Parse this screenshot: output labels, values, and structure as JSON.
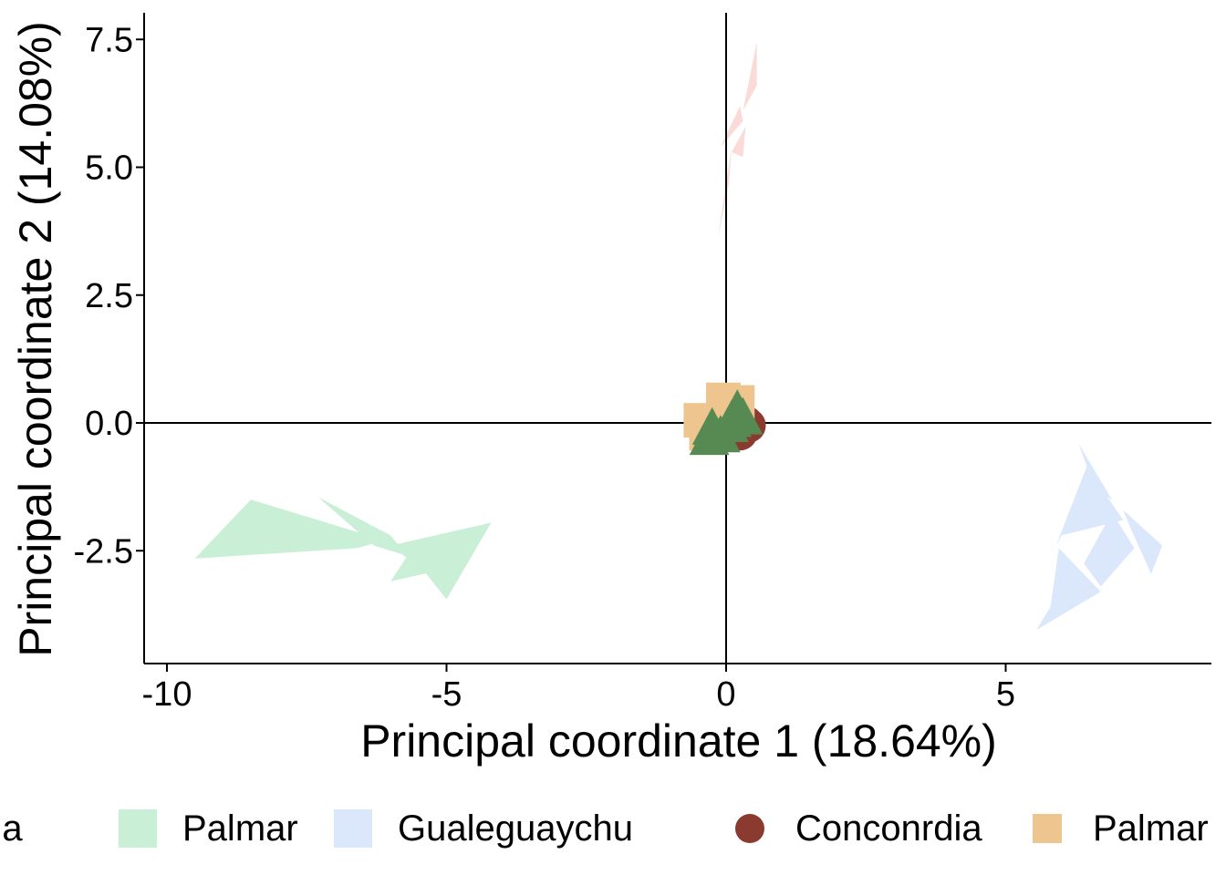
{
  "colors": {
    "concordia_hull": "#fadbd8",
    "palmar_hull": "#c9efd6",
    "gualeguaychu_hull": "#dbe7fb",
    "concordia_point": "#8b3a2f",
    "palmar_point": "#eec48f",
    "gualeguaychu_point": "#568a52",
    "axis": "#000000"
  },
  "chart_data": {
    "type": "scatter",
    "title": "",
    "xlabel": "Principal coordinate 1 (18.64%)",
    "ylabel": "Principal coordinate 2 (14.08%)",
    "xlim": [
      -10.4,
      8.7
    ],
    "ylim": [
      -4.7,
      8.0
    ],
    "xticks": [
      -10,
      -5,
      0,
      5
    ],
    "xtick_labels": [
      "-10",
      "-5",
      "0",
      "5"
    ],
    "yticks": [
      -2.5,
      0.0,
      2.5,
      5.0,
      7.5
    ],
    "ytick_labels": [
      "-2.5",
      "0.0",
      "2.5",
      "5.0",
      "7.5"
    ],
    "reference_lines": {
      "x": 0,
      "y": 0
    },
    "grid": false,
    "legend_position": "bottom",
    "hull_legend": [
      {
        "label": "Conconrdia",
        "color": "#fadbd8"
      },
      {
        "label": "Palmar",
        "color": "#c9efd6"
      },
      {
        "label": "Gualeguaychu",
        "color": "#dbe7fb"
      }
    ],
    "point_legend": [
      {
        "label": "Conconrdia",
        "shape": "circle",
        "color": "#8b3a2f"
      },
      {
        "label": "Palmar",
        "shape": "square",
        "color": "#eec48f"
      },
      {
        "label": "Gualeguaychu",
        "shape": "triangle",
        "color": "#568a52"
      }
    ],
    "hulls": [
      {
        "group": "Conconrdia",
        "color": "#fadbd8",
        "polygons": [
          [
            [
              0.55,
              7.45
            ],
            [
              0.3,
              6.1
            ],
            [
              0.55,
              6.6
            ]
          ],
          [
            [
              0.25,
              6.2
            ],
            [
              -0.1,
              5.4
            ],
            [
              0.3,
              5.9
            ]
          ],
          [
            [
              0.35,
              5.8
            ],
            [
              0.1,
              5.3
            ],
            [
              0.3,
              5.2
            ]
          ],
          [
            [
              0.1,
              5.4
            ],
            [
              -0.15,
              3.6
            ],
            [
              0.05,
              4.7
            ]
          ]
        ]
      },
      {
        "group": "Palmar",
        "color": "#c9efd6",
        "polygons": [
          [
            [
              -8.5,
              -1.5
            ],
            [
              -6.1,
              -2.3
            ],
            [
              -6.6,
              -2.45
            ],
            [
              -9.5,
              -2.65
            ]
          ],
          [
            [
              -7.3,
              -1.45
            ],
            [
              -6.0,
              -2.2
            ],
            [
              -5.7,
              -2.6
            ],
            [
              -6.3,
              -2.4
            ]
          ],
          [
            [
              -6.0,
              -2.4
            ],
            [
              -4.2,
              -1.95
            ],
            [
              -5.0,
              -3.45
            ],
            [
              -5.4,
              -2.9
            ]
          ],
          [
            [
              -5.7,
              -2.6
            ],
            [
              -5.2,
              -2.9
            ],
            [
              -6.0,
              -3.1
            ]
          ]
        ]
      },
      {
        "group": "Gualeguaychu",
        "color": "#dbe7fb",
        "polygons": [
          [
            [
              6.45,
              -0.85
            ],
            [
              7.1,
              -1.9
            ],
            [
              6.0,
              -2.2
            ],
            [
              5.9,
              -2.4
            ]
          ],
          [
            [
              7.1,
              -1.7
            ],
            [
              7.8,
              -2.4
            ],
            [
              7.6,
              -2.95
            ],
            [
              7.25,
              -2.1
            ]
          ],
          [
            [
              6.9,
              -1.75
            ],
            [
              7.3,
              -2.45
            ],
            [
              6.7,
              -3.2
            ],
            [
              6.4,
              -2.75
            ]
          ],
          [
            [
              5.95,
              -2.45
            ],
            [
              6.7,
              -3.3
            ],
            [
              5.55,
              -4.05
            ],
            [
              5.8,
              -3.6
            ]
          ],
          [
            [
              6.3,
              -0.4
            ],
            [
              6.9,
              -1.5
            ],
            [
              6.6,
              -1.3
            ]
          ]
        ]
      }
    ],
    "points": [
      {
        "group": "Conconrdia",
        "shape": "circle",
        "x": 0.35,
        "y": 0.0
      },
      {
        "group": "Conconrdia",
        "shape": "circle",
        "x": 0.25,
        "y": -0.2
      },
      {
        "group": "Conconrdia",
        "shape": "circle",
        "x": 0.4,
        "y": -0.05
      },
      {
        "group": "Palmar",
        "shape": "square",
        "x": -0.05,
        "y": 0.45
      },
      {
        "group": "Palmar",
        "shape": "square",
        "x": 0.2,
        "y": 0.4
      },
      {
        "group": "Palmar",
        "shape": "square",
        "x": -0.45,
        "y": 0.05
      },
      {
        "group": "Palmar",
        "shape": "square",
        "x": -0.35,
        "y": -0.2
      },
      {
        "group": "Palmar",
        "shape": "square",
        "x": 0.0,
        "y": 0.2
      },
      {
        "group": "Gualeguaychu",
        "shape": "triangle",
        "x": -0.25,
        "y": -0.1
      },
      {
        "group": "Gualeguaychu",
        "shape": "triangle",
        "x": -0.1,
        "y": -0.25
      },
      {
        "group": "Gualeguaychu",
        "shape": "triangle",
        "x": 0.05,
        "y": -0.05
      },
      {
        "group": "Gualeguaychu",
        "shape": "triangle",
        "x": 0.2,
        "y": 0.25
      },
      {
        "group": "Gualeguaychu",
        "shape": "triangle",
        "x": 0.3,
        "y": 0.1
      },
      {
        "group": "Gualeguaychu",
        "shape": "triangle",
        "x": -0.3,
        "y": -0.3
      },
      {
        "group": "Gualeguaychu",
        "shape": "triangle",
        "x": 0.1,
        "y": 0.05
      }
    ]
  }
}
